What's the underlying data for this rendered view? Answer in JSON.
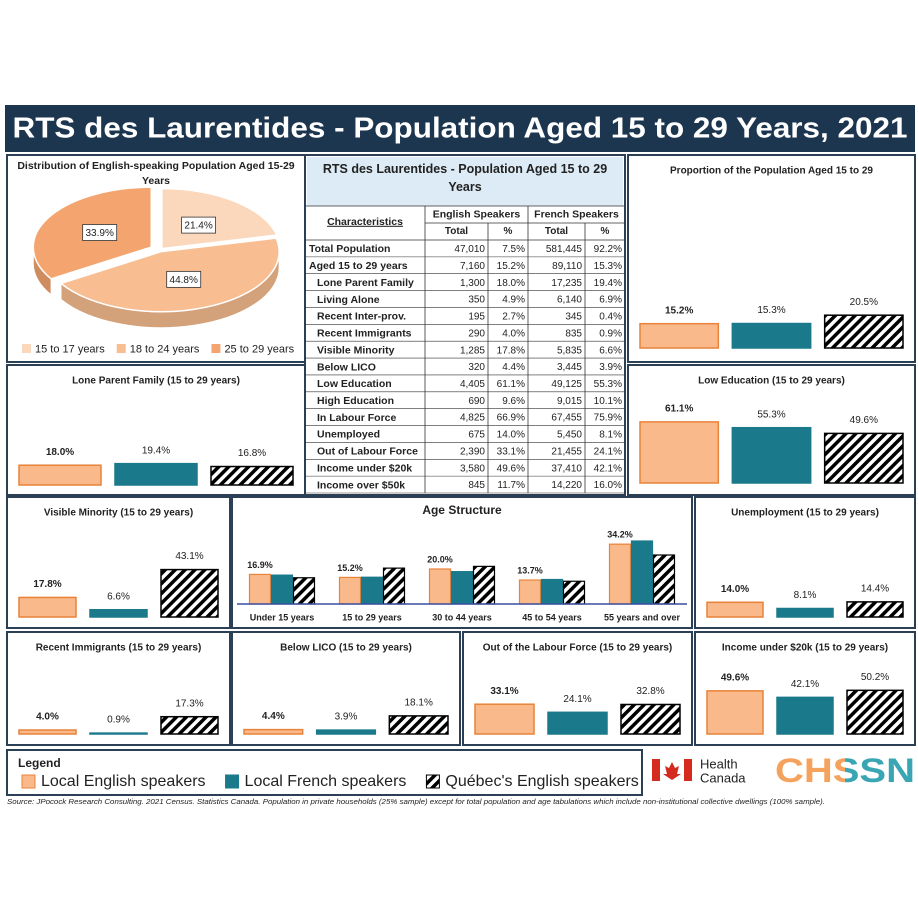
{
  "header": {
    "title": "RTS des Laurentides - Population Aged 15 to 29 Years, 2021"
  },
  "legend": {
    "title": "Legend",
    "items": [
      {
        "name": "Local English speakers",
        "color": "#f9b98a",
        "edge": "#e8833a"
      },
      {
        "name": "Local French speakers",
        "color": "#1a7a8c",
        "edge": "#1a7a8c"
      },
      {
        "name": "Québec's English speakers",
        "color": "#000000",
        "edge": "#000000",
        "pattern": "hatch"
      }
    ]
  },
  "table": {
    "title": "RTS des Laurentides - Population Aged 15 to 29 Years",
    "columns": [
      "Characteristics",
      "English Speakers",
      "French Speakers"
    ],
    "subcolumns": [
      "Total",
      "%",
      "Total",
      "%"
    ],
    "rows": [
      [
        "Total Population",
        "47,010",
        "7.5%",
        "581,445",
        "92.2%"
      ],
      [
        "Aged 15 to 29 years",
        "7,160",
        "15.2%",
        "89,110",
        "15.3%"
      ],
      [
        "Lone Parent Family",
        "1,300",
        "18.0%",
        "17,235",
        "19.4%"
      ],
      [
        "Living Alone",
        "350",
        "4.9%",
        "6,140",
        "6.9%"
      ],
      [
        "Recent Inter-prov.",
        "195",
        "2.7%",
        "345",
        "0.4%"
      ],
      [
        "Recent Immigrants",
        "290",
        "4.0%",
        "835",
        "0.9%"
      ],
      [
        "Visible Minority",
        "1,285",
        "17.8%",
        "5,835",
        "6.6%"
      ],
      [
        "Below LICO",
        "320",
        "4.4%",
        "3,445",
        "3.9%"
      ],
      [
        "Low Education",
        "4,405",
        "61.1%",
        "49,125",
        "55.3%"
      ],
      [
        "High Education",
        "690",
        "9.6%",
        "9,015",
        "10.1%"
      ],
      [
        "In Labour Force",
        "4,825",
        "66.9%",
        "67,455",
        "75.9%"
      ],
      [
        "Unemployed",
        "675",
        "14.0%",
        "5,450",
        "8.1%"
      ],
      [
        "Out of Labour Force",
        "2,390",
        "33.1%",
        "21,455",
        "24.1%"
      ],
      [
        "Income under $20k",
        "3,580",
        "49.6%",
        "37,410",
        "42.1%"
      ],
      [
        "Income over $50k",
        "845",
        "11.7%",
        "14,220",
        "16.0%"
      ]
    ]
  },
  "chart_data": [
    {
      "type": "pie",
      "title": "Distribution of English-speaking Population Aged 15-29 Years",
      "categories": [
        "15 to 17 years",
        "18 to 24 years",
        "25 to 29 years"
      ],
      "values": [
        21.4,
        44.8,
        33.9
      ],
      "value_labels": [
        "21.4%",
        "44.8%",
        "33.9%"
      ],
      "colors": [
        "#fbd7bb",
        "#f8bd90",
        "#f4a56f"
      ]
    },
    {
      "type": "bar",
      "title": "Proportion of the Population Aged 15 to 29",
      "values": [
        15.2,
        15.3,
        20.5
      ],
      "value_labels": [
        "15.2%",
        "15.3%",
        "20.5%"
      ]
    },
    {
      "type": "bar",
      "title": "Lone Parent Family (15 to 29 years)",
      "values": [
        18.0,
        19.4,
        16.8
      ],
      "value_labels": [
        "18.0%",
        "19.4%",
        "16.8%"
      ]
    },
    {
      "type": "bar",
      "title": "Low Education (15 to 29 years)",
      "values": [
        61.1,
        55.3,
        49.6
      ],
      "value_labels": [
        "61.1%",
        "55.3%",
        "49.6%"
      ]
    },
    {
      "type": "bar",
      "title": "Visible Minority (15 to 29 years)",
      "values": [
        17.8,
        6.6,
        43.1
      ],
      "value_labels": [
        "17.8%",
        "6.6%",
        "43.1%"
      ]
    },
    {
      "type": "bar",
      "title": "Age Structure",
      "categories": [
        "Under 15 years",
        "15 to 29 years",
        "30 to 44 years",
        "45 to 54 years",
        "55 years and over"
      ],
      "series": [
        {
          "values": [
            16.9,
            15.2,
            20.0,
            13.7,
            34.2
          ],
          "value_labels": [
            "16.9%",
            "15.2%",
            "20.0%",
            "13.7%",
            "34.2%"
          ]
        },
        {
          "values": [
            16.5,
            15.3,
            18.5,
            14.0,
            36.0
          ]
        },
        {
          "values": [
            15.0,
            20.5,
            21.5,
            13.0,
            28.0
          ]
        }
      ]
    },
    {
      "type": "bar",
      "title": "Unemployment (15 to 29 years)",
      "values": [
        14.0,
        8.1,
        14.4
      ],
      "value_labels": [
        "14.0%",
        "8.1%",
        "14.4%"
      ]
    },
    {
      "type": "bar",
      "title": "Recent Immigrants (15 to 29 years)",
      "values": [
        4.0,
        0.9,
        17.3
      ],
      "value_labels": [
        "4.0%",
        "0.9%",
        "17.3%"
      ]
    },
    {
      "type": "bar",
      "title": "Below LICO (15 to 29 years)",
      "values": [
        4.4,
        3.9,
        18.1
      ],
      "value_labels": [
        "4.4%",
        "3.9%",
        "18.1%"
      ]
    },
    {
      "type": "bar",
      "title": "Out of the Labour Force (15 to 29 years)",
      "values": [
        33.1,
        24.1,
        32.8
      ],
      "value_labels": [
        "33.1%",
        "24.1%",
        "32.8%"
      ]
    },
    {
      "type": "bar",
      "title": "Income under $20k (15 to 29 years)",
      "values": [
        49.6,
        42.1,
        50.2
      ],
      "value_labels": [
        "49.6%",
        "42.1%",
        "50.2%"
      ]
    }
  ],
  "logos": {
    "health": [
      "Health",
      "Canada"
    ],
    "chssn": "CHSSN"
  },
  "source": "Source: JPocock Research Consulting. 2021 Census. Statistics Canada. Population in private households (25% sample) except for total population and age tabulations which include non-institutional collective dwellings (100% sample)."
}
